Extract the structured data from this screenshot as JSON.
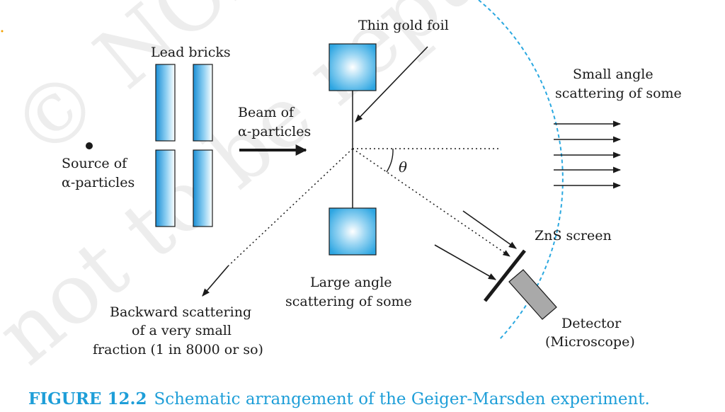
{
  "watermark": {
    "line1": "© NCERT",
    "line2": "not to be republished"
  },
  "labels": {
    "lead_bricks": "Lead bricks",
    "source_line1": "Source of",
    "source_line2": "α-particles",
    "beam_line1": "Beam of",
    "beam_line2": "α-particles",
    "gold_foil": "Thin gold foil",
    "small_angle_line1": "Small angle",
    "small_angle_line2": "scattering of some",
    "theta": "θ",
    "zns_screen": "ZnS screen",
    "large_angle_line1": "Large angle",
    "large_angle_line2": "scattering of some",
    "backward_line1": "Backward scattering",
    "backward_line2": "of a very small",
    "backward_line3": "fraction (1 in 8000 or so)",
    "detector_line1": "Detector",
    "detector_line2": "(Microscope)"
  },
  "caption": {
    "number": "FIGURE 12.2",
    "text": "Schematic arrangement of the Geiger-Marsden experiment."
  },
  "colors": {
    "caption": "#1e9ed8",
    "brick_blue": "#1b8fd6",
    "foil_blue": "#3aaee6",
    "dashed_circle": "#2aa8e0",
    "ink": "#1a1a1a"
  }
}
